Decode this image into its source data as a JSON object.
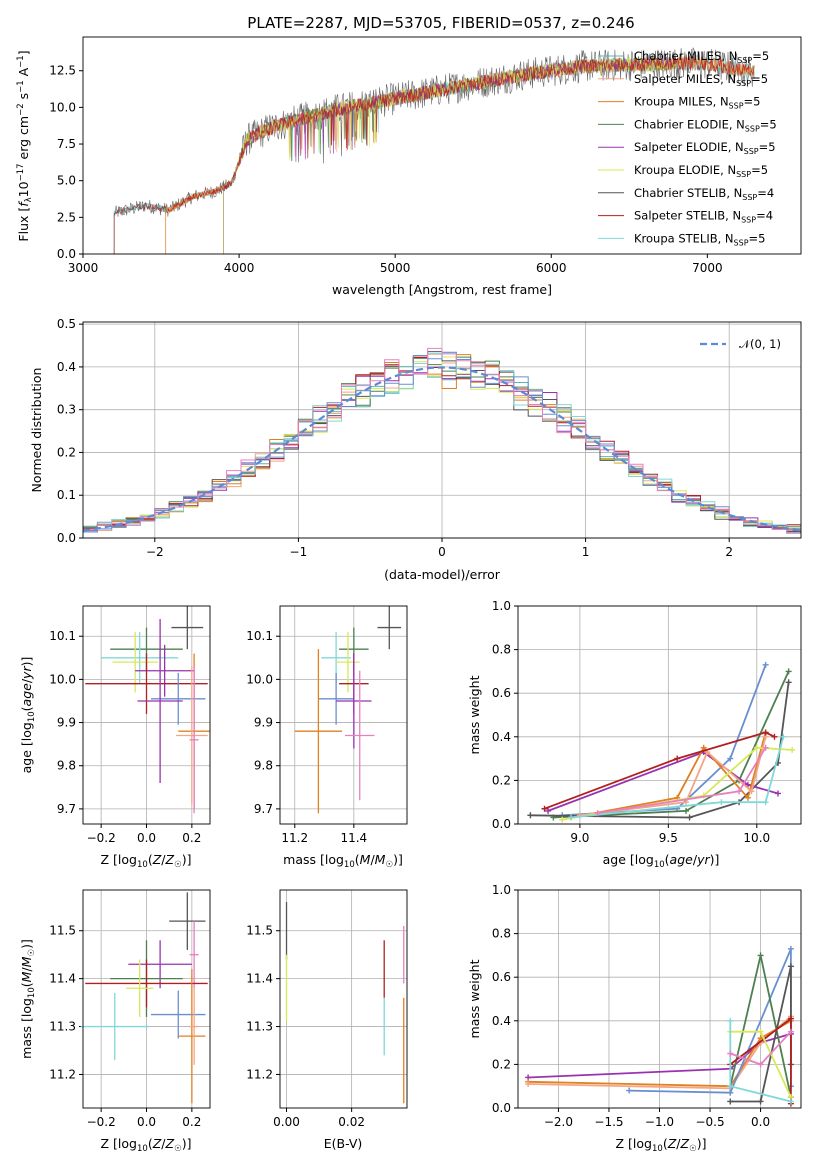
{
  "figure_title": "PLATE=2287, MJD=53705, FIBERID=0537, z=0.246",
  "colors": {
    "Chabrier MILES": "#5ab4ac",
    "Salpeter MILES": "#f4a582",
    "Kroupa MILES": "#e08020",
    "Chabrier ELODIE": "#4d8050",
    "Salpeter ELODIE": "#9a32b0",
    "Kroupa ELODIE": "#d8e858",
    "Chabrier STELIB": "#555555",
    "Salpeter STELIB": "#b02020",
    "Kroupa STELIB": "#80d8d8",
    "extra_blue": "#6a8fd0",
    "extra_pink": "#e880c0",
    "gaussian": "#5b8ad6"
  },
  "chart_data": [
    {
      "id": "spectrum",
      "type": "line",
      "title": "PLATE=2287, MJD=53705, FIBERID=0537, z=0.246",
      "xlabel": "wavelength [Angstrom, rest frame]",
      "ylabel": "Flux [f_λ 10^-17 erg cm^-2 s^-1 A^-1]",
      "xlim": [
        3000,
        7600
      ],
      "ylim": [
        0,
        14.8
      ],
      "xticks": [
        "3000",
        "4000",
        "5000",
        "6000",
        "7000"
      ],
      "yticks": [
        "0.0",
        "2.5",
        "5.0",
        "7.5",
        "10.0",
        "12.5"
      ],
      "legend_position": "upper-right",
      "legend": [
        "Chabrier MILES, N_SSP=5",
        "Salpeter MILES, N_SSP=5",
        "Kroupa MILES, N_SSP=5",
        "Chabrier ELODIE, N_SSP=5",
        "Salpeter ELODIE, N_SSP=5",
        "Kroupa ELODIE, N_SSP=5",
        "Chabrier STELIB, N_SSP=4",
        "Salpeter STELIB, N_SSP=4",
        "Kroupa STELIB, N_SSP=5"
      ],
      "continuum_anchors": [
        [
          3200,
          2.8
        ],
        [
          3400,
          3.3
        ],
        [
          3550,
          3.0
        ],
        [
          3700,
          3.9
        ],
        [
          3850,
          4.3
        ],
        [
          3950,
          4.8
        ],
        [
          4050,
          7.8
        ],
        [
          4200,
          8.6
        ],
        [
          4400,
          9.2
        ],
        [
          4600,
          9.8
        ],
        [
          4800,
          10.2
        ],
        [
          5000,
          10.6
        ],
        [
          5200,
          11.0
        ],
        [
          5400,
          11.4
        ],
        [
          5600,
          11.8
        ],
        [
          5800,
          12.2
        ],
        [
          6000,
          12.5
        ],
        [
          6200,
          12.8
        ],
        [
          6500,
          12.9
        ],
        [
          6800,
          13.0
        ],
        [
          7000,
          13.0
        ],
        [
          7300,
          12.4
        ]
      ],
      "series_ranges": [
        [
          3200,
          7300
        ],
        [
          3530,
          7300
        ],
        [
          3530,
          7300
        ],
        [
          3900,
          6800
        ],
        [
          3900,
          6800
        ],
        [
          3900,
          6800
        ],
        [
          3200,
          7300
        ],
        [
          3200,
          7300
        ],
        [
          3200,
          7300
        ]
      ]
    },
    {
      "id": "residuals",
      "type": "bar",
      "xlabel": "(data-model)/error",
      "ylabel": "Normed distribution",
      "xlim": [
        -2.5,
        2.5
      ],
      "ylim": [
        0,
        0.505
      ],
      "xticks": [
        "−2",
        "−1",
        "0",
        "1",
        "2"
      ],
      "yticks": [
        "0.0",
        "0.1",
        "0.2",
        "0.3",
        "0.4",
        "0.5"
      ],
      "grid": true,
      "legend_position": "upper-right",
      "gaussian_label": "𝒩(0, 1)",
      "bin_width": 0.1,
      "bins_from": -2.5,
      "bins_to": 2.5
    },
    {
      "id": "age_vs_Z",
      "type": "scatter",
      "xlabel": "Z [log10(Z/Z⊙)]",
      "ylabel": "age  [log10(age/yr)]",
      "xlim": [
        -0.28,
        0.28
      ],
      "ylim": [
        9.665,
        10.17
      ],
      "xticks": [
        -0.2,
        0.0,
        0.2
      ],
      "yticks": [
        9.7,
        9.8,
        9.9,
        10.0,
        10.1
      ],
      "xtick_labels": [
        "−0.2",
        "0.0",
        "0.2"
      ],
      "ytick_labels": [
        "9.7",
        "9.8",
        "9.9",
        "10.0",
        "10.1"
      ],
      "grid": true,
      "points": [
        {
          "x": 0.18,
          "y": 10.12,
          "xerr": 0.07,
          "yerr": 0.05,
          "c": "#555555"
        },
        {
          "x": 0.0,
          "y": 10.07,
          "xerr": 0.16,
          "yerr": 0.05,
          "c": "#4d8050"
        },
        {
          "x": -0.03,
          "y": 10.05,
          "xerr": 0.17,
          "yerr": 0.06,
          "c": "#80d8d8"
        },
        {
          "x": -0.05,
          "y": 10.04,
          "xerr": 0.1,
          "yerr": 0.07,
          "c": "#d8e858"
        },
        {
          "x": 0.08,
          "y": 10.02,
          "xerr": 0.13,
          "yerr": 0.06,
          "c": "#9a32b0"
        },
        {
          "x": 0.0,
          "y": 9.99,
          "xerr": 0.27,
          "yerr": 0.07,
          "c": "#b02020"
        },
        {
          "x": 0.14,
          "y": 9.955,
          "xerr": 0.12,
          "yerr": 0.06,
          "c": "#6a8fd0"
        },
        {
          "x": 0.06,
          "y": 9.95,
          "xerr": 0.1,
          "yerr": 0.19,
          "c": "#9a32b0"
        },
        {
          "x": 0.21,
          "y": 9.88,
          "xerr": 0.07,
          "yerr": 0.18,
          "c": "#e08020"
        },
        {
          "x": 0.2,
          "y": 9.87,
          "xerr": 0.07,
          "yerr": 0.16,
          "c": "#f4a582"
        },
        {
          "x": 0.21,
          "y": 9.86,
          "xerr": 0.02,
          "yerr": 0.17,
          "c": "#e880c0"
        }
      ]
    },
    {
      "id": "age_vs_mass",
      "type": "scatter",
      "xlabel": "mass [log10(M/M⊙)]",
      "ylabel": "",
      "xlim": [
        11.15,
        11.58
      ],
      "ylim": [
        9.665,
        10.17
      ],
      "xticks": [
        11.2,
        11.4
      ],
      "yticks": [
        9.7,
        9.8,
        9.9,
        10.0,
        10.1
      ],
      "xtick_labels": [
        "11.2",
        "11.4"
      ],
      "ytick_labels": [
        "9.7",
        "9.8",
        "9.9",
        "10.0",
        "10.1"
      ],
      "grid": true,
      "points": [
        {
          "x": 11.52,
          "y": 10.12,
          "xerr": 0.04,
          "yerr": 0.05,
          "c": "#555555"
        },
        {
          "x": 11.4,
          "y": 10.07,
          "xerr": 0.05,
          "yerr": 0.05,
          "c": "#4d8050"
        },
        {
          "x": 11.34,
          "y": 10.05,
          "xerr": 0.05,
          "yerr": 0.06,
          "c": "#80d8d8"
        },
        {
          "x": 11.38,
          "y": 10.04,
          "xerr": 0.04,
          "yerr": 0.07,
          "c": "#d8e858"
        },
        {
          "x": 11.4,
          "y": 9.99,
          "xerr": 0.05,
          "yerr": 0.07,
          "c": "#b02020"
        },
        {
          "x": 11.34,
          "y": 9.955,
          "xerr": 0.06,
          "yerr": 0.06,
          "c": "#6a8fd0"
        },
        {
          "x": 11.4,
          "y": 9.95,
          "xerr": 0.06,
          "yerr": 0.11,
          "c": "#9a32b0"
        },
        {
          "x": 11.28,
          "y": 9.88,
          "xerr": 0.08,
          "yerr": 0.19,
          "c": "#e08020"
        },
        {
          "x": 11.42,
          "y": 9.87,
          "xerr": 0.05,
          "yerr": 0.15,
          "c": "#e880c0"
        }
      ]
    },
    {
      "id": "weight_vs_age",
      "type": "line",
      "xlabel": "age  [log10(age/yr)]",
      "ylabel": "mass weight",
      "xlim": [
        8.65,
        10.25
      ],
      "ylim": [
        0,
        1
      ],
      "xticks": [
        9.0,
        9.5,
        10.0
      ],
      "yticks": [
        0.0,
        0.2,
        0.4,
        0.6,
        0.8,
        1.0
      ],
      "xtick_labels": [
        "9.0",
        "9.5",
        "10.0"
      ],
      "ytick_labels": [
        "0.0",
        "0.2",
        "0.4",
        "0.6",
        "0.8",
        "1.0"
      ],
      "grid": true,
      "series": [
        {
          "c": "#6a8fd0",
          "x": [
            8.9,
            9.55,
            9.85,
            10.05
          ],
          "y": [
            0.04,
            0.07,
            0.3,
            0.73
          ]
        },
        {
          "c": "#4d8050",
          "x": [
            8.85,
            9.6,
            9.9,
            10.18
          ],
          "y": [
            0.03,
            0.06,
            0.2,
            0.7
          ]
        },
        {
          "c": "#555555",
          "x": [
            8.72,
            9.62,
            9.9,
            10.12,
            10.18
          ],
          "y": [
            0.04,
            0.03,
            0.1,
            0.28,
            0.65
          ]
        },
        {
          "c": "#9a32b0",
          "x": [
            8.82,
            9.7,
            9.95,
            10.12
          ],
          "y": [
            0.06,
            0.33,
            0.18,
            0.14
          ]
        },
        {
          "c": "#e08020",
          "x": [
            8.95,
            9.55,
            9.7,
            9.95,
            10.05
          ],
          "y": [
            0.03,
            0.12,
            0.35,
            0.12,
            0.42
          ]
        },
        {
          "c": "#f4a582",
          "x": [
            9.0,
            9.6,
            9.72,
            9.97,
            10.05
          ],
          "y": [
            0.04,
            0.1,
            0.33,
            0.15,
            0.4
          ]
        },
        {
          "c": "#b02020",
          "x": [
            8.8,
            9.55,
            10.05,
            10.1
          ],
          "y": [
            0.07,
            0.3,
            0.42,
            0.4
          ]
        },
        {
          "c": "#d8e858",
          "x": [
            8.9,
            9.7,
            10.0,
            10.2
          ],
          "y": [
            0.02,
            0.13,
            0.35,
            0.34
          ]
        },
        {
          "c": "#80d8d8",
          "x": [
            8.95,
            9.8,
            10.05,
            10.15
          ],
          "y": [
            0.03,
            0.1,
            0.1,
            0.4
          ]
        },
        {
          "c": "#e880c0",
          "x": [
            9.1,
            9.9,
            10.05
          ],
          "y": [
            0.05,
            0.15,
            0.35
          ]
        }
      ]
    },
    {
      "id": "mass_vs_Z",
      "type": "scatter",
      "xlabel": "Z [log10(Z/Z⊙)]",
      "ylabel": "mass [log10(M/M⊙)]",
      "xlim": [
        -0.28,
        0.28
      ],
      "ylim": [
        11.13,
        11.585
      ],
      "xticks": [
        -0.2,
        0.0,
        0.2
      ],
      "yticks": [
        11.2,
        11.3,
        11.4,
        11.5
      ],
      "xtick_labels": [
        "−0.2",
        "0.0",
        "0.2"
      ],
      "ytick_labels": [
        "11.2",
        "11.3",
        "11.4",
        "11.5"
      ],
      "grid": true,
      "points": [
        {
          "x": 0.18,
          "y": 11.52,
          "xerr": 0.08,
          "yerr": 0.06,
          "c": "#555555"
        },
        {
          "x": 0.21,
          "y": 11.45,
          "xerr": 0.02,
          "yerr": 0.07,
          "c": "#e880c0"
        },
        {
          "x": 0.06,
          "y": 11.43,
          "xerr": 0.14,
          "yerr": 0.05,
          "c": "#9a32b0"
        },
        {
          "x": 0.0,
          "y": 11.4,
          "xerr": 0.16,
          "yerr": 0.08,
          "c": "#4d8050"
        },
        {
          "x": 0.0,
          "y": 11.39,
          "xerr": 0.27,
          "yerr": 0.05,
          "c": "#b02020"
        },
        {
          "x": -0.03,
          "y": 11.38,
          "xerr": 0.06,
          "yerr": 0.06,
          "c": "#d8e858"
        },
        {
          "x": 0.14,
          "y": 11.325,
          "xerr": 0.12,
          "yerr": 0.05,
          "c": "#6a8fd0"
        },
        {
          "x": -0.14,
          "y": 11.3,
          "xerr": 0.15,
          "yerr": 0.07,
          "c": "#80d8d8"
        },
        {
          "x": 0.2,
          "y": 11.28,
          "xerr": 0.06,
          "yerr": 0.14,
          "c": "#e08020"
        },
        {
          "x": 0.21,
          "y": 11.3,
          "xerr": 0.02,
          "yerr": 0.08,
          "c": "#f4a582"
        }
      ]
    },
    {
      "id": "mass_vs_ebv",
      "type": "scatter",
      "xlabel": "E(B-V)",
      "ylabel": "",
      "xlim": [
        -0.002,
        0.037
      ],
      "ylim": [
        11.13,
        11.585
      ],
      "xticks": [
        0.0,
        0.02
      ],
      "yticks": [
        11.2,
        11.3,
        11.4,
        11.5
      ],
      "xtick_labels": [
        "0.00",
        "0.02"
      ],
      "ytick_labels": [
        "11.2",
        "11.3",
        "11.4",
        "11.5"
      ],
      "grid": true,
      "points": [
        {
          "x": 0.0,
          "y": 11.5,
          "xerr": 0,
          "yerr": 0.06,
          "c": "#555555"
        },
        {
          "x": 0.0,
          "y": 11.38,
          "xerr": 0,
          "yerr": 0.07,
          "c": "#d8e858"
        },
        {
          "x": 0.03,
          "y": 11.42,
          "xerr": 0,
          "yerr": 0.06,
          "c": "#b02020"
        },
        {
          "x": 0.03,
          "y": 11.3,
          "xerr": 0,
          "yerr": 0.06,
          "c": "#80d8d8"
        },
        {
          "x": 0.036,
          "y": 11.45,
          "xerr": 0,
          "yerr": 0.06,
          "c": "#e880c0"
        },
        {
          "x": 0.036,
          "y": 11.25,
          "xerr": 0,
          "yerr": 0.11,
          "c": "#e08020"
        }
      ]
    },
    {
      "id": "weight_vs_Z",
      "type": "line",
      "xlabel": "Z [log10(Z/Z⊙)]",
      "ylabel": "mass weight",
      "xlim": [
        -2.4,
        0.4
      ],
      "ylim": [
        0,
        1
      ],
      "xticks": [
        -2.0,
        -1.5,
        -1.0,
        -0.5,
        0.0
      ],
      "yticks": [
        0.0,
        0.2,
        0.4,
        0.6,
        0.8,
        1.0
      ],
      "xtick_labels": [
        "−2.0",
        "−1.5",
        "−1.0",
        "−0.5",
        "0.0"
      ],
      "ytick_labels": [
        "0.0",
        "0.2",
        "0.4",
        "0.6",
        "0.8",
        "1.0"
      ],
      "grid": true,
      "series": [
        {
          "c": "#9a32b0",
          "x": [
            -2.3,
            -0.3,
            0.0,
            0.3
          ],
          "y": [
            0.14,
            0.18,
            0.3,
            0.34
          ]
        },
        {
          "c": "#e08020",
          "x": [
            -2.3,
            -0.3,
            0.0,
            0.3
          ],
          "y": [
            0.12,
            0.1,
            0.32,
            0.4
          ]
        },
        {
          "c": "#f4a582",
          "x": [
            -2.3,
            -0.3,
            0.0,
            0.3
          ],
          "y": [
            0.11,
            0.09,
            0.3,
            0.42
          ]
        },
        {
          "c": "#6a8fd0",
          "x": [
            -1.3,
            -0.3,
            0.3,
            0.3
          ],
          "y": [
            0.08,
            0.07,
            0.73,
            0.1
          ]
        },
        {
          "c": "#4d8050",
          "x": [
            -0.3,
            0.0,
            0.3
          ],
          "y": [
            0.1,
            0.7,
            0.05
          ]
        },
        {
          "c": "#555555",
          "x": [
            -0.3,
            0.0,
            0.3,
            0.3
          ],
          "y": [
            0.03,
            0.03,
            0.65,
            0.2
          ]
        },
        {
          "c": "#b02020",
          "x": [
            -0.3,
            0.3,
            0.3
          ],
          "y": [
            0.2,
            0.41,
            0.02
          ]
        },
        {
          "c": "#d8e858",
          "x": [
            -0.3,
            0.0,
            0.3
          ],
          "y": [
            0.35,
            0.35,
            0.05
          ]
        },
        {
          "c": "#80d8d8",
          "x": [
            -0.3,
            -0.3,
            0.3
          ],
          "y": [
            0.4,
            0.1,
            0.03
          ]
        },
        {
          "c": "#e880c0",
          "x": [
            -0.3,
            0.0,
            0.3
          ],
          "y": [
            0.25,
            0.2,
            0.35
          ]
        }
      ]
    }
  ]
}
